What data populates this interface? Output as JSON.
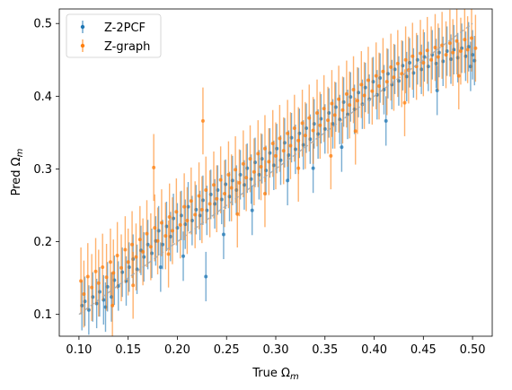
{
  "chart_data": {
    "type": "scatter",
    "xlabel": "True Ωm",
    "ylabel": "Pred Ωm",
    "xlim": [
      0.08,
      0.52
    ],
    "ylim": [
      0.07,
      0.52
    ],
    "x_ticks": [
      0.1,
      0.15,
      0.2,
      0.25,
      0.3,
      0.35,
      0.4,
      0.45,
      0.5
    ],
    "y_ticks": [
      0.1,
      0.2,
      0.3,
      0.4,
      0.5
    ],
    "x_tick_labels": [
      "0.10",
      "0.15",
      "0.20",
      "0.25",
      "0.30",
      "0.35",
      "0.40",
      "0.45",
      "0.50"
    ],
    "y_tick_labels": [
      "0.1",
      "0.2",
      "0.3",
      "0.4",
      "0.5"
    ],
    "legend_position": "top-left",
    "grid": false,
    "reference_line": {
      "style": "dashed",
      "color": "#aaaaaa",
      "from": [
        0.1,
        0.1
      ],
      "to": [
        0.5,
        0.5
      ]
    },
    "series": [
      {
        "name": "Z-2PCF",
        "color": "#1f77b4",
        "typical_error": 0.034,
        "points": [
          [
            0.103,
            0.112
          ],
          [
            0.106,
            0.118
          ],
          [
            0.11,
            0.106
          ],
          [
            0.114,
            0.124
          ],
          [
            0.118,
            0.115
          ],
          [
            0.121,
            0.131
          ],
          [
            0.125,
            0.12
          ],
          [
            0.129,
            0.138
          ],
          [
            0.133,
            0.124
          ],
          [
            0.136,
            0.147
          ],
          [
            0.14,
            0.139
          ],
          [
            0.144,
            0.158
          ],
          [
            0.148,
            0.146
          ],
          [
            0.151,
            0.165
          ],
          [
            0.155,
            0.176
          ],
          [
            0.159,
            0.162
          ],
          [
            0.163,
            0.188
          ],
          [
            0.166,
            0.179
          ],
          [
            0.17,
            0.196
          ],
          [
            0.174,
            0.184
          ],
          [
            0.178,
            0.201
          ],
          [
            0.181,
            0.215
          ],
          [
            0.185,
            0.196
          ],
          [
            0.189,
            0.221
          ],
          [
            0.193,
            0.207
          ],
          [
            0.196,
            0.232
          ],
          [
            0.2,
            0.219
          ],
          [
            0.204,
            0.236
          ],
          [
            0.208,
            0.224
          ],
          [
            0.211,
            0.248
          ],
          [
            0.215,
            0.229
          ],
          [
            0.219,
            0.244
          ],
          [
            0.223,
            0.236
          ],
          [
            0.226,
            0.257
          ],
          [
            0.229,
            0.152
          ],
          [
            0.23,
            0.243
          ],
          [
            0.234,
            0.265
          ],
          [
            0.238,
            0.252
          ],
          [
            0.241,
            0.271
          ],
          [
            0.245,
            0.258
          ],
          [
            0.249,
            0.279
          ],
          [
            0.253,
            0.262
          ],
          [
            0.256,
            0.284
          ],
          [
            0.26,
            0.271
          ],
          [
            0.264,
            0.292
          ],
          [
            0.268,
            0.278
          ],
          [
            0.271,
            0.301
          ],
          [
            0.275,
            0.286
          ],
          [
            0.279,
            0.309
          ],
          [
            0.283,
            0.292
          ],
          [
            0.286,
            0.314
          ],
          [
            0.29,
            0.298
          ],
          [
            0.294,
            0.322
          ],
          [
            0.298,
            0.305
          ],
          [
            0.301,
            0.328
          ],
          [
            0.305,
            0.312
          ],
          [
            0.309,
            0.336
          ],
          [
            0.313,
            0.319
          ],
          [
            0.316,
            0.343
          ],
          [
            0.32,
            0.327
          ],
          [
            0.324,
            0.349
          ],
          [
            0.328,
            0.333
          ],
          [
            0.331,
            0.356
          ],
          [
            0.335,
            0.341
          ],
          [
            0.339,
            0.362
          ],
          [
            0.343,
            0.348
          ],
          [
            0.346,
            0.369
          ],
          [
            0.35,
            0.355
          ],
          [
            0.354,
            0.377
          ],
          [
            0.358,
            0.362
          ],
          [
            0.361,
            0.385
          ],
          [
            0.365,
            0.368
          ],
          [
            0.369,
            0.392
          ],
          [
            0.373,
            0.375
          ],
          [
            0.376,
            0.399
          ],
          [
            0.38,
            0.382
          ],
          [
            0.384,
            0.405
          ],
          [
            0.388,
            0.389
          ],
          [
            0.391,
            0.412
          ],
          [
            0.395,
            0.396
          ],
          [
            0.399,
            0.42
          ],
          [
            0.403,
            0.402
          ],
          [
            0.406,
            0.425
          ],
          [
            0.41,
            0.409
          ],
          [
            0.414,
            0.431
          ],
          [
            0.418,
            0.416
          ],
          [
            0.421,
            0.437
          ],
          [
            0.425,
            0.421
          ],
          [
            0.429,
            0.442
          ],
          [
            0.433,
            0.427
          ],
          [
            0.436,
            0.446
          ],
          [
            0.44,
            0.432
          ],
          [
            0.444,
            0.45
          ],
          [
            0.448,
            0.437
          ],
          [
            0.451,
            0.454
          ],
          [
            0.455,
            0.441
          ],
          [
            0.459,
            0.457
          ],
          [
            0.463,
            0.445
          ],
          [
            0.466,
            0.46
          ],
          [
            0.47,
            0.448
          ],
          [
            0.474,
            0.462
          ],
          [
            0.478,
            0.451
          ],
          [
            0.481,
            0.464
          ],
          [
            0.485,
            0.453
          ],
          [
            0.489,
            0.466
          ],
          [
            0.493,
            0.455
          ],
          [
            0.496,
            0.468
          ],
          [
            0.5,
            0.457
          ],
          [
            0.502,
            0.449
          ],
          [
            0.498,
            0.441
          ],
          [
            0.127,
            0.11
          ],
          [
            0.183,
            0.165
          ],
          [
            0.247,
            0.21
          ],
          [
            0.312,
            0.284
          ],
          [
            0.367,
            0.33
          ],
          [
            0.412,
            0.366
          ],
          [
            0.464,
            0.408
          ],
          [
            0.338,
            0.301
          ],
          [
            0.276,
            0.243
          ],
          [
            0.206,
            0.18
          ]
        ]
      },
      {
        "name": "Z-graph",
        "color": "#ff7f0e",
        "typical_error": 0.046,
        "points": [
          [
            0.102,
            0.146
          ],
          [
            0.105,
            0.128
          ],
          [
            0.109,
            0.152
          ],
          [
            0.113,
            0.137
          ],
          [
            0.117,
            0.159
          ],
          [
            0.12,
            0.143
          ],
          [
            0.124,
            0.165
          ],
          [
            0.128,
            0.151
          ],
          [
            0.132,
            0.172
          ],
          [
            0.135,
            0.157
          ],
          [
            0.139,
            0.181
          ],
          [
            0.143,
            0.164
          ],
          [
            0.147,
            0.189
          ],
          [
            0.15,
            0.172
          ],
          [
            0.154,
            0.196
          ],
          [
            0.158,
            0.179
          ],
          [
            0.162,
            0.203
          ],
          [
            0.165,
            0.186
          ],
          [
            0.169,
            0.211
          ],
          [
            0.173,
            0.193
          ],
          [
            0.177,
            0.219
          ],
          [
            0.18,
            0.201
          ],
          [
            0.184,
            0.226
          ],
          [
            0.188,
            0.208
          ],
          [
            0.192,
            0.234
          ],
          [
            0.195,
            0.215
          ],
          [
            0.199,
            0.241
          ],
          [
            0.203,
            0.223
          ],
          [
            0.207,
            0.248
          ],
          [
            0.21,
            0.229
          ],
          [
            0.214,
            0.256
          ],
          [
            0.218,
            0.237
          ],
          [
            0.222,
            0.263
          ],
          [
            0.225,
            0.244
          ],
          [
            0.229,
            0.271
          ],
          [
            0.233,
            0.252
          ],
          [
            0.237,
            0.278
          ],
          [
            0.24,
            0.259
          ],
          [
            0.244,
            0.285
          ],
          [
            0.248,
            0.266
          ],
          [
            0.252,
            0.292
          ],
          [
            0.255,
            0.274
          ],
          [
            0.259,
            0.299
          ],
          [
            0.263,
            0.281
          ],
          [
            0.267,
            0.307
          ],
          [
            0.27,
            0.288
          ],
          [
            0.274,
            0.314
          ],
          [
            0.278,
            0.296
          ],
          [
            0.282,
            0.321
          ],
          [
            0.285,
            0.303
          ],
          [
            0.289,
            0.328
          ],
          [
            0.293,
            0.31
          ],
          [
            0.297,
            0.335
          ],
          [
            0.3,
            0.318
          ],
          [
            0.304,
            0.342
          ],
          [
            0.308,
            0.325
          ],
          [
            0.312,
            0.349
          ],
          [
            0.315,
            0.332
          ],
          [
            0.319,
            0.356
          ],
          [
            0.323,
            0.339
          ],
          [
            0.327,
            0.363
          ],
          [
            0.33,
            0.346
          ],
          [
            0.334,
            0.37
          ],
          [
            0.338,
            0.353
          ],
          [
            0.342,
            0.377
          ],
          [
            0.345,
            0.36
          ],
          [
            0.349,
            0.383
          ],
          [
            0.353,
            0.367
          ],
          [
            0.357,
            0.39
          ],
          [
            0.36,
            0.374
          ],
          [
            0.364,
            0.396
          ],
          [
            0.368,
            0.381
          ],
          [
            0.372,
            0.403
          ],
          [
            0.375,
            0.388
          ],
          [
            0.379,
            0.409
          ],
          [
            0.383,
            0.394
          ],
          [
            0.387,
            0.416
          ],
          [
            0.39,
            0.401
          ],
          [
            0.394,
            0.422
          ],
          [
            0.398,
            0.407
          ],
          [
            0.402,
            0.428
          ],
          [
            0.405,
            0.414
          ],
          [
            0.409,
            0.434
          ],
          [
            0.413,
            0.42
          ],
          [
            0.417,
            0.44
          ],
          [
            0.42,
            0.426
          ],
          [
            0.424,
            0.445
          ],
          [
            0.428,
            0.431
          ],
          [
            0.432,
            0.45
          ],
          [
            0.435,
            0.436
          ],
          [
            0.439,
            0.455
          ],
          [
            0.443,
            0.441
          ],
          [
            0.447,
            0.459
          ],
          [
            0.45,
            0.446
          ],
          [
            0.454,
            0.463
          ],
          [
            0.458,
            0.45
          ],
          [
            0.462,
            0.467
          ],
          [
            0.465,
            0.454
          ],
          [
            0.469,
            0.47
          ],
          [
            0.473,
            0.457
          ],
          [
            0.477,
            0.473
          ],
          [
            0.48,
            0.46
          ],
          [
            0.484,
            0.476
          ],
          [
            0.488,
            0.462
          ],
          [
            0.492,
            0.478
          ],
          [
            0.495,
            0.464
          ],
          [
            0.499,
            0.48
          ],
          [
            0.503,
            0.466
          ],
          [
            0.226,
            0.366
          ],
          [
            0.176,
            0.302
          ],
          [
            0.134,
            0.112
          ],
          [
            0.191,
            0.183
          ],
          [
            0.261,
            0.238
          ],
          [
            0.323,
            0.301
          ],
          [
            0.381,
            0.352
          ],
          [
            0.431,
            0.391
          ],
          [
            0.486,
            0.428
          ],
          [
            0.356,
            0.318
          ],
          [
            0.289,
            0.266
          ],
          [
            0.155,
            0.14
          ]
        ]
      }
    ]
  }
}
